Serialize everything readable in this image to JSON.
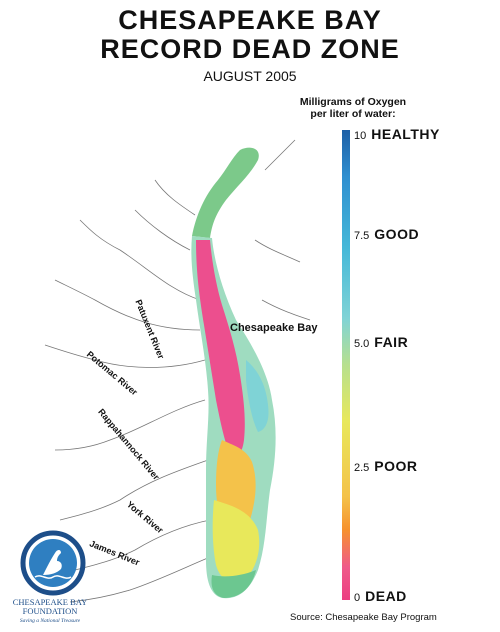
{
  "title": {
    "line1": "CHESAPEAKE BAY",
    "line2": "RECORD DEAD ZONE"
  },
  "subtitle": "AUGUST 2005",
  "legend": {
    "title_line1": "Milligrams of Oxygen",
    "title_line2": "per liter of water:",
    "ticks": [
      {
        "value": "10",
        "level": "HEALTHY"
      },
      {
        "value": "7.5",
        "level": "GOOD"
      },
      {
        "value": "5.0",
        "level": "FAIR"
      },
      {
        "value": "2.5",
        "level": "POOR"
      },
      {
        "value": "0",
        "level": "DEAD"
      }
    ],
    "colors": [
      "#1d5fa6",
      "#45b8d8",
      "#7fd3d6",
      "#b7e08e",
      "#e8e85b",
      "#f6922e",
      "#ec3f82"
    ]
  },
  "labels": {
    "bay": "Chesapeake Bay",
    "rivers": [
      "Patuxent River",
      "Potomac River",
      "Rappahannock River",
      "York River",
      "James River"
    ]
  },
  "source": "Source: Chesapeake Bay Program",
  "logo": {
    "name_line1": "CHESAPEAKE BAY",
    "name_line2": "FOUNDATION",
    "tagline": "Saving a National Treasure",
    "icon": "heron-icon"
  }
}
